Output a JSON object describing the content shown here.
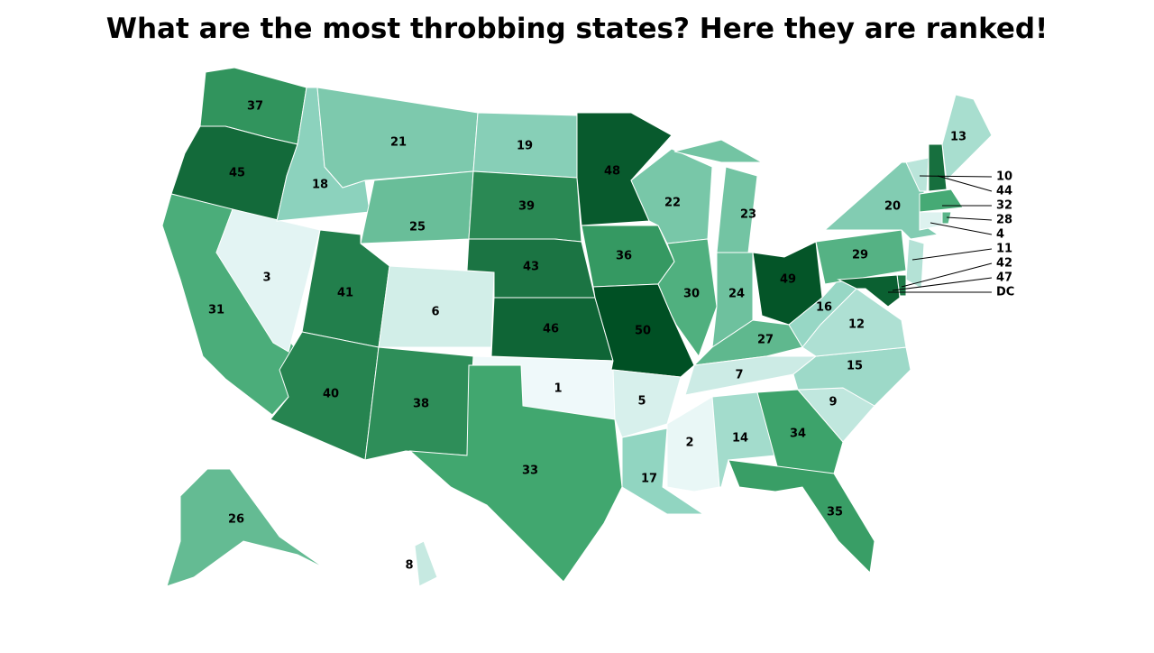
{
  "title": "What are the most throbbing states? Here they are ranked!",
  "color_scale": [
    "#eff9fa",
    "#8fd4c0",
    "#3ea56c",
    "#005024"
  ],
  "regions": [
    {
      "rank": 37
    },
    {
      "rank": 45
    },
    {
      "rank": 31
    },
    {
      "rank": 3
    },
    {
      "rank": 18
    },
    {
      "rank": 21
    },
    {
      "rank": 25
    },
    {
      "rank": 41
    },
    {
      "rank": 6
    },
    {
      "rank": 40
    },
    {
      "rank": 38
    },
    {
      "rank": 19
    },
    {
      "rank": 39
    },
    {
      "rank": 43
    },
    {
      "rank": 46
    },
    {
      "rank": 1
    },
    {
      "rank": 33
    },
    {
      "rank": 48
    },
    {
      "rank": 36
    },
    {
      "rank": 50
    },
    {
      "rank": 5
    },
    {
      "rank": 17
    },
    {
      "rank": 22
    },
    {
      "rank": 30
    },
    {
      "rank": 23
    },
    {
      "rank": 24
    },
    {
      "rank": 49
    },
    {
      "rank": 27
    },
    {
      "rank": 7
    },
    {
      "rank": 2
    },
    {
      "rank": 14
    },
    {
      "rank": 34
    },
    {
      "rank": 35
    },
    {
      "rank": 9
    },
    {
      "rank": 15
    },
    {
      "rank": 12
    },
    {
      "rank": 16
    },
    {
      "rank": 29
    },
    {
      "rank": 20
    },
    {
      "rank": 13
    },
    {
      "rank": 26
    },
    {
      "rank": 8
    },
    {
      "rank": 10
    },
    {
      "rank": 44
    },
    {
      "rank": 32
    },
    {
      "rank": 28
    },
    {
      "rank": 4
    },
    {
      "rank": 11
    },
    {
      "rank": 42
    },
    {
      "rank": 47
    },
    {
      "label": "DC"
    }
  ]
}
